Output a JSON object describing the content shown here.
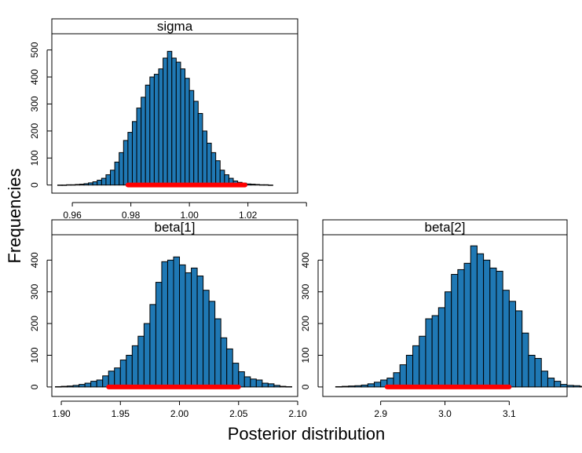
{
  "figure": {
    "ylabel": "Frequencies",
    "xlabel": "Posterior distribution"
  },
  "colors": {
    "bar_fill": "#1f78b4",
    "bar_stroke": "#000000",
    "interval": "#ff0000"
  },
  "chart_data": [
    {
      "type": "bar",
      "title": "sigma",
      "bin_width": 0.0015,
      "bin_start": 0.955,
      "values": [
        0,
        0,
        1,
        1,
        2,
        3,
        5,
        8,
        12,
        18,
        25,
        38,
        55,
        85,
        120,
        165,
        195,
        235,
        285,
        325,
        370,
        400,
        410,
        430,
        470,
        495,
        470,
        455,
        430,
        395,
        350,
        310,
        265,
        200,
        155,
        120,
        90,
        55,
        38,
        25,
        15,
        10,
        7,
        4,
        3,
        2,
        1,
        1,
        0
      ],
      "interval": [
        0.979,
        1.019
      ],
      "xlim": [
        0.953,
        1.037
      ],
      "ylim": [
        -30,
        560
      ],
      "xticks": [
        0.96,
        0.98,
        1.0,
        1.02,
        1.04
      ],
      "xtick_labels": [
        "0.96",
        "0.98",
        "1.00",
        "1.02",
        ""
      ],
      "yticks": [
        0,
        100,
        200,
        300,
        400,
        500
      ],
      "ytick_labels": [
        "0",
        "100",
        "200",
        "300",
        "400",
        "500"
      ]
    },
    {
      "type": "bar",
      "title": "beta[1]",
      "bin_width": 0.005,
      "bin_start": 1.895,
      "values": [
        1,
        2,
        3,
        5,
        8,
        12,
        18,
        22,
        35,
        50,
        60,
        85,
        100,
        130,
        160,
        200,
        260,
        330,
        395,
        400,
        410,
        385,
        360,
        375,
        350,
        305,
        270,
        215,
        155,
        120,
        75,
        48,
        32,
        25,
        22,
        12,
        10,
        5,
        2,
        1
      ],
      "interval": [
        1.94,
        2.05
      ],
      "xlim": [
        1.892,
        2.1
      ],
      "ylim": [
        -30,
        480
      ],
      "xticks": [
        1.9,
        1.95,
        2.0,
        2.05,
        2.1
      ],
      "xtick_labels": [
        "1.90",
        "1.95",
        "2.00",
        "2.05",
        "2.10"
      ],
      "yticks": [
        0,
        100,
        200,
        300,
        400
      ],
      "ytick_labels": [
        "0",
        "100",
        "200",
        "300",
        "400"
      ]
    },
    {
      "type": "bar",
      "title": "beta[2]",
      "bin_width": 0.01,
      "bin_start": 2.83,
      "values": [
        1,
        2,
        3,
        4,
        6,
        10,
        15,
        22,
        28,
        45,
        70,
        100,
        130,
        160,
        215,
        225,
        250,
        300,
        355,
        370,
        390,
        445,
        420,
        400,
        375,
        365,
        305,
        270,
        240,
        170,
        100,
        90,
        50,
        28,
        18,
        8,
        5,
        4,
        2,
        1
      ],
      "interval": [
        2.91,
        3.1
      ],
      "xlim": [
        2.81,
        3.19
      ],
      "ylim": [
        -30,
        480
      ],
      "xticks": [
        2.9,
        3.0,
        3.1
      ],
      "xtick_labels": [
        "2.9",
        "3.0",
        "3.1"
      ],
      "yticks": [
        0,
        100,
        200,
        300,
        400
      ],
      "ytick_labels": [
        "0",
        "100",
        "200",
        "300",
        "400"
      ]
    }
  ]
}
